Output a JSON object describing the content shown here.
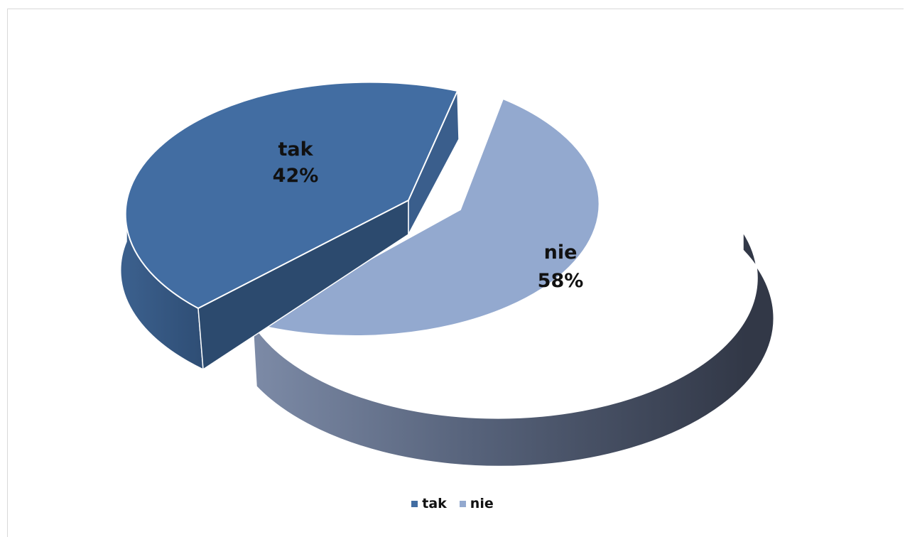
{
  "chart_data": {
    "type": "pie",
    "style": "3d-exploded",
    "slices": [
      {
        "label": "tak",
        "value": 42,
        "percent_label": "42%",
        "color": "#426DA2",
        "side_color": "#2C4A6E"
      },
      {
        "label": "nie",
        "value": 58,
        "percent_label": "58%",
        "color": "#93A9CF",
        "side_color": "#4A5870"
      }
    ],
    "legend": {
      "placement": "bottom",
      "items": [
        {
          "label": "tak",
          "color": "#426DA2"
        },
        {
          "label": "nie",
          "color": "#93A9CF"
        }
      ]
    }
  }
}
